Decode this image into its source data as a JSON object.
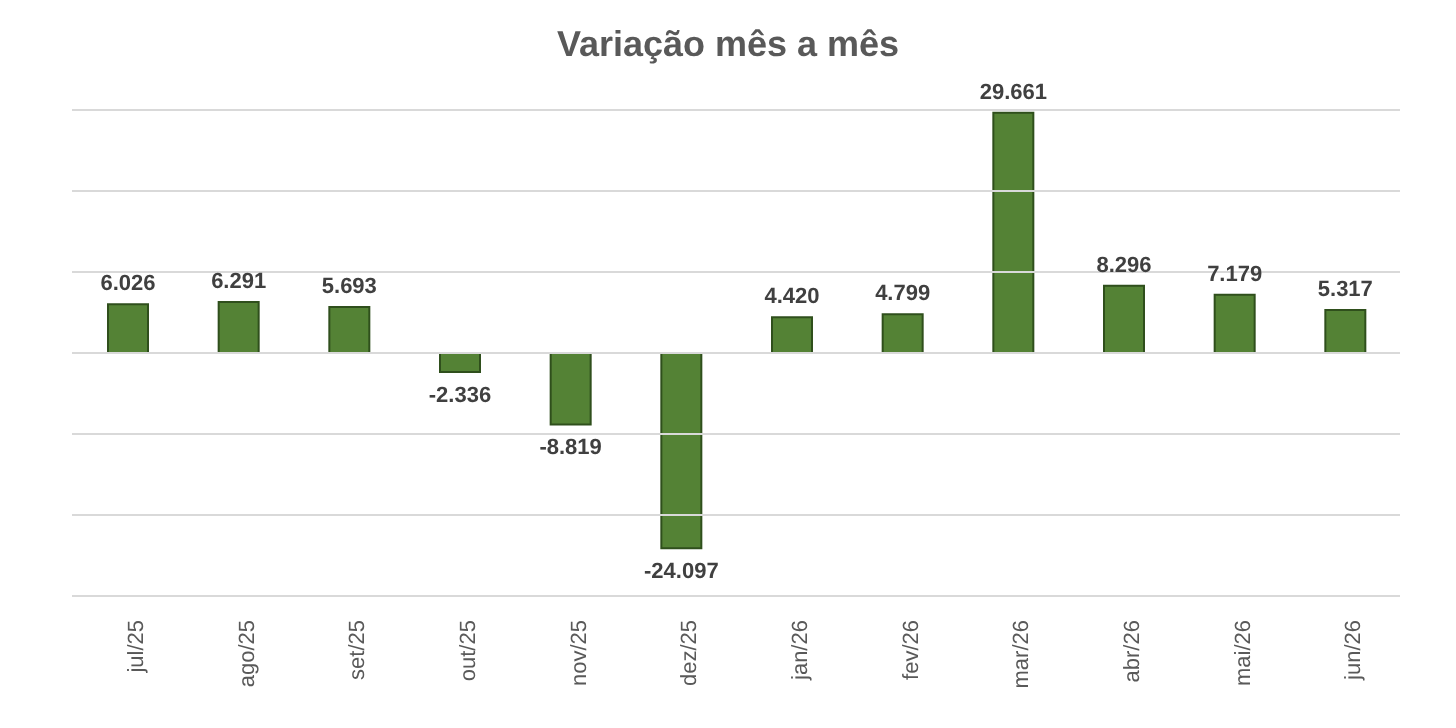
{
  "chart_data": {
    "type": "bar",
    "title": "Variação mês a mês",
    "categories": [
      "jul/25",
      "ago/25",
      "set/25",
      "out/25",
      "nov/25",
      "dez/25",
      "jan/26",
      "fev/26",
      "mar/26",
      "abr/26",
      "mai/26",
      "jun/26"
    ],
    "values": [
      6026,
      6291,
      5693,
      -2336,
      -8819,
      -24097,
      4420,
      4799,
      29661,
      8296,
      7179,
      5317
    ],
    "value_labels": [
      "6.026",
      "6.291",
      "5.693",
      "-2.336",
      "-8.819",
      "-24.097",
      "4.420",
      "4.799",
      "29.661",
      "8.296",
      "7.179",
      "5.317"
    ],
    "color": "#548235",
    "ylim": [
      -30000,
      30000
    ],
    "yticks": [
      {
        "value": -30000,
        "label": null
      },
      {
        "value": -20000,
        "label": null
      },
      {
        "value": -10000,
        "label": null
      },
      {
        "value": 0,
        "label": null
      },
      {
        "value": 10000,
        "label": null
      },
      {
        "value": 20000,
        "label": null
      },
      {
        "value": 30000,
        "label": null
      }
    ],
    "grid": "y",
    "tick_labels": "x"
  }
}
